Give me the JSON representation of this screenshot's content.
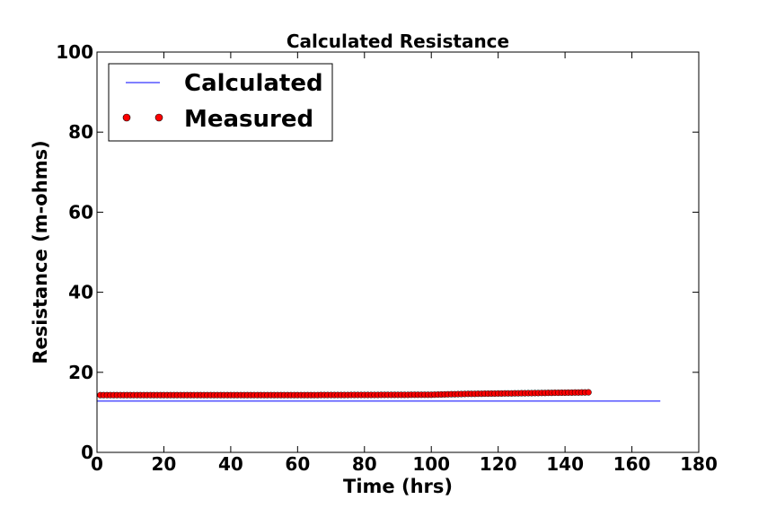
{
  "chart_data": {
    "type": "line",
    "title": "Calculated Resistance",
    "xlabel": "Time (hrs)",
    "ylabel": "Resistance (m-ohms)",
    "xlim": [
      0,
      180
    ],
    "ylim": [
      0,
      100
    ],
    "xticks": [
      0,
      20,
      40,
      60,
      80,
      100,
      120,
      140,
      160,
      180
    ],
    "yticks": [
      0,
      20,
      40,
      60,
      80,
      100
    ],
    "grid": false,
    "legend": "top-left",
    "series": [
      {
        "name": "Calculated",
        "style": "line",
        "color": "#0000ff",
        "x": [
          0,
          168.5
        ],
        "y": [
          12.8,
          12.8
        ]
      },
      {
        "name": "Measured",
        "style": "markers",
        "color": "#ff0000",
        "x_start": 1,
        "x_end": 147,
        "x_step": 1,
        "y_points": [
          [
            1,
            14.3
          ],
          [
            60,
            14.3
          ],
          [
            100,
            14.4
          ],
          [
            110,
            14.6
          ],
          [
            130,
            14.8
          ],
          [
            147,
            15.0
          ]
        ]
      }
    ]
  }
}
